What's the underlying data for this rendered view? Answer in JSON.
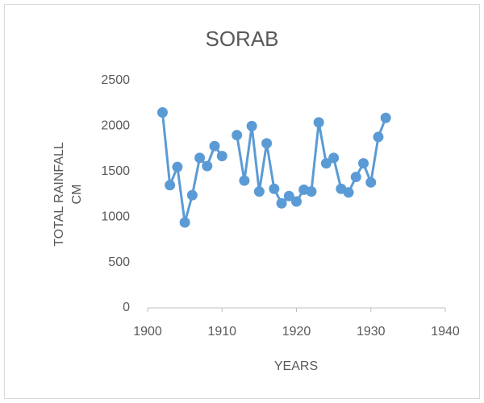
{
  "chart_data": {
    "type": "line",
    "title": "SORAB",
    "xlabel": "YEARS",
    "ylabel": [
      "TOTAL RAINFALL",
      "CM"
    ],
    "x": [
      1902,
      1903,
      1904,
      1905,
      1906,
      1907,
      1908,
      1909,
      1910,
      1911,
      1912,
      1913,
      1914,
      1915,
      1916,
      1917,
      1918,
      1919,
      1920,
      1921,
      1922,
      1923,
      1924,
      1925,
      1926,
      1927,
      1928,
      1929,
      1930,
      1931,
      1932
    ],
    "series": [
      {
        "name": "SORAB",
        "color": "#5b9bd5",
        "values": [
          2150,
          1350,
          1550,
          940,
          1240,
          1650,
          1560,
          1780,
          1670,
          null,
          1900,
          1400,
          2000,
          1280,
          1810,
          1310,
          1150,
          1230,
          1170,
          1300,
          1280,
          2040,
          1590,
          1650,
          1310,
          1270,
          1440,
          1590,
          1380,
          1880,
          2090
        ]
      }
    ],
    "xlim": [
      1900,
      1940
    ],
    "xticks": [
      1900,
      1910,
      1920,
      1930,
      1940
    ],
    "ylim": [
      0,
      2500
    ],
    "yticks": [
      0,
      500,
      1000,
      1500,
      2000,
      2500
    ],
    "grid": false,
    "legend": false
  }
}
